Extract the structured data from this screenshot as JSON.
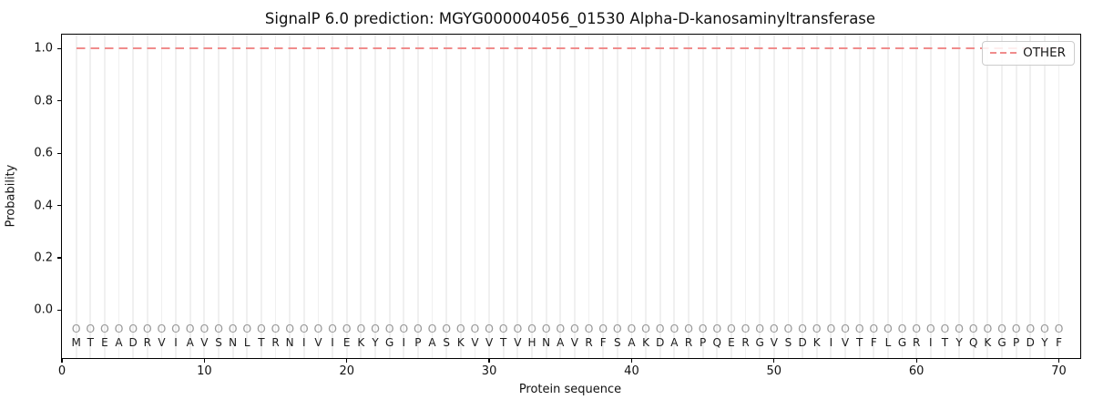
{
  "figure": {
    "title": "SignalP 6.0 prediction: MGYG000004056_01530 Alpha-D-kanosaminyltransferase",
    "xlabel": "Protein sequence",
    "ylabel": "Probability",
    "legend": {
      "label": "OTHER"
    }
  },
  "chart_data": {
    "type": "line",
    "title": "SignalP 6.0 prediction: MGYG000004056_01530 Alpha-D-kanosaminyltransferase",
    "xlabel": "Protein sequence",
    "ylabel": "Probability",
    "xlim": [
      0,
      71.5
    ],
    "ylim": [
      -0.183,
      1.054
    ],
    "x_ticks": [
      0,
      10,
      20,
      30,
      40,
      50,
      60,
      70
    ],
    "y_ticks": [
      "0.0",
      "0.2",
      "0.4",
      "0.6",
      "0.8",
      "1.0"
    ],
    "grid": "vertical-line-per-residue",
    "legend_position": "upper-right",
    "sequence": "MTEADRVIAVSNLTRNIVIEKYGIPASKVVTVHNAVRFSAKDARPQERGVSDKIVTFLGRITYQKGPDYF",
    "sequence_length": 70,
    "series": [
      {
        "name": "OTHER",
        "style": "dashed",
        "color": "#f08c8c",
        "x_start": 1,
        "x_end": 70,
        "y_constant": 1.0,
        "note": "flat line: OTHER probability = 1.0 at every residue 1-70"
      }
    ],
    "residue_markers": {
      "glyph": "O",
      "y": -0.07,
      "color": "#9a9a9a"
    },
    "sequence_row_y": -0.124,
    "colors": {
      "line": "#f08c8c",
      "grid": "#f0f0f0",
      "axis": "#000000",
      "text": "#111111",
      "marker": "#9a9a9a",
      "letter": "#1a1a1a"
    }
  }
}
